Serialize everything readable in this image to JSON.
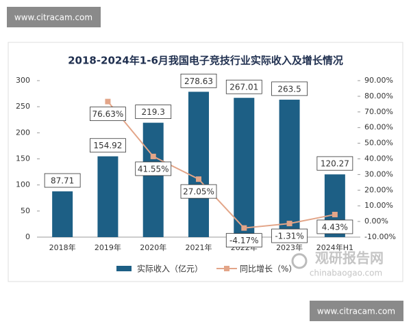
{
  "chart_data": {
    "type": "bar",
    "title": "2018-2024年1-6月我国电子竞技行业实际收入及增长情况",
    "categories": [
      "2018年",
      "2019年",
      "2020年",
      "2021年",
      "2022年",
      "2023年",
      "2024年H1"
    ],
    "series": [
      {
        "name": "实际收入（亿元）",
        "type": "bar",
        "color": "#1d5f85",
        "values": [
          87.71,
          154.92,
          219.3,
          278.63,
          267.01,
          263.5,
          120.27
        ]
      },
      {
        "name": "同比增长（%）",
        "type": "line",
        "axis": "y2",
        "color": "#e3a588",
        "values": [
          null,
          76.63,
          41.55,
          27.05,
          -4.17,
          -1.31,
          4.43
        ],
        "value_labels": [
          null,
          "76.63%",
          "41.55%",
          "27.05%",
          "-4.17%",
          "-1.31%",
          "4.43%"
        ]
      }
    ],
    "ylim": [
      0,
      300
    ],
    "yticks": [
      0,
      50,
      100,
      150,
      200,
      250,
      300
    ],
    "y2lim": [
      -10,
      90
    ],
    "y2ticks": [
      {
        "value": -10,
        "label": "-10.00%"
      },
      {
        "value": 0,
        "label": "0.00%"
      },
      {
        "value": 10,
        "label": "10.00%"
      },
      {
        "value": 20,
        "label": "20.00%"
      },
      {
        "value": 30,
        "label": "30.00%"
      },
      {
        "value": 40,
        "label": "40.00%"
      },
      {
        "value": 50,
        "label": "50.00%"
      },
      {
        "value": 60,
        "label": "60.00%"
      },
      {
        "value": 70,
        "label": "70.00%"
      },
      {
        "value": 80,
        "label": "80.00%"
      },
      {
        "value": 90,
        "label": "90.00%"
      }
    ],
    "legend": "bottom"
  },
  "watermarks": [
    "www.citracam.com",
    "www.citracam.com"
  ],
  "logo": {
    "name": "观研报告网",
    "url": "chinabaogao.com"
  }
}
